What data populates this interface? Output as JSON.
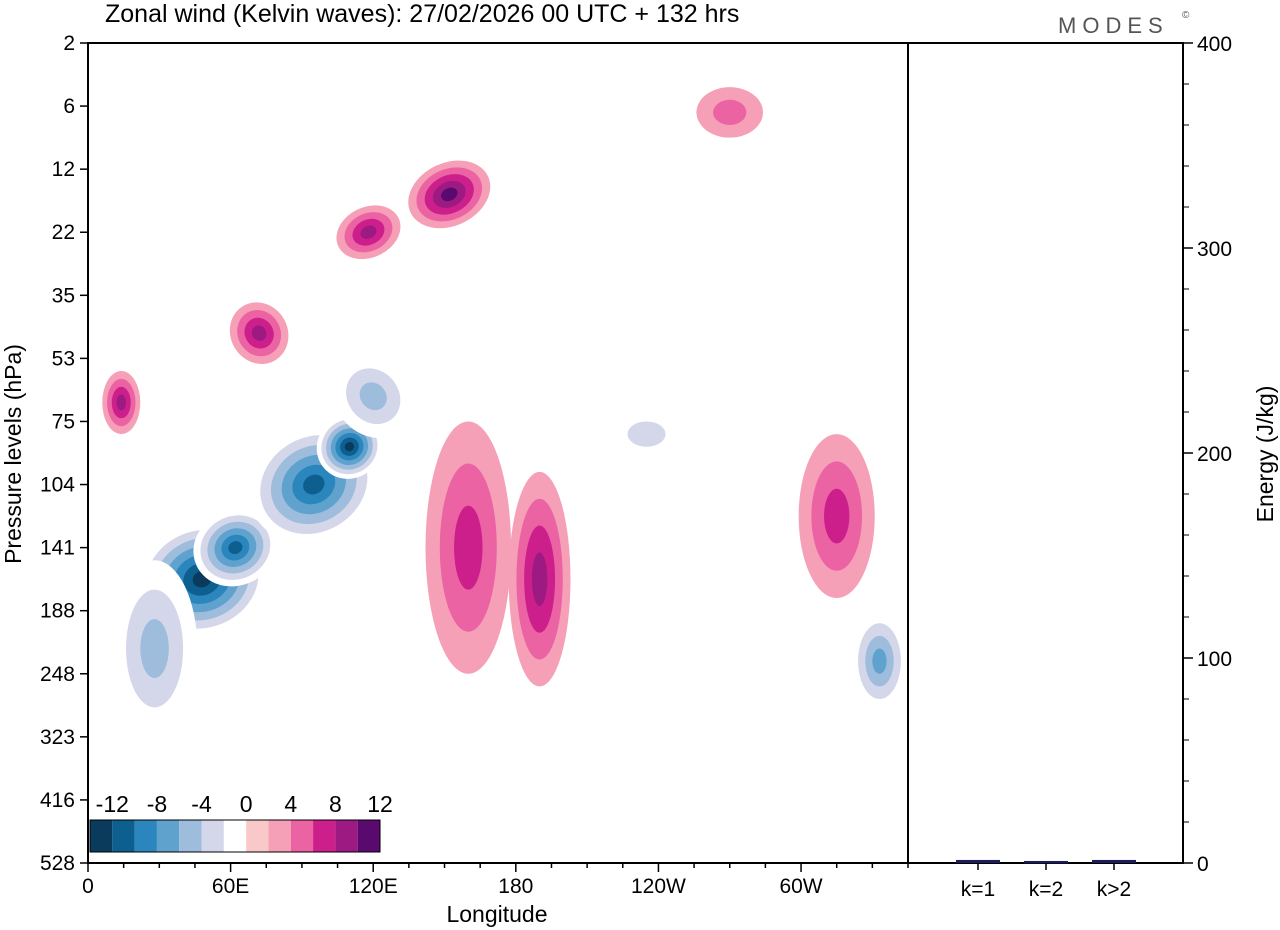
{
  "title": "Zonal wind (Kelvin waves):  27/02/2026  00 UTC  + 132 hrs",
  "brand": "MODES",
  "brand_mark": "©",
  "chart_data": [
    {
      "type": "heatmap",
      "title": "Zonal wind (Kelvin waves):  27/02/2026  00 UTC  + 132 hrs",
      "xlabel": "Longitude",
      "ylabel": "Pressure levels (hPa)",
      "x_ticks": [
        "0",
        "60E",
        "120E",
        "180",
        "120W",
        "60W"
      ],
      "x_tick_values": [
        0,
        60,
        120,
        180,
        240,
        300
      ],
      "xlim": [
        0,
        345
      ],
      "y_ticks": [
        "2",
        "6",
        "12",
        "22",
        "35",
        "53",
        "75",
        "104",
        "141",
        "188",
        "248",
        "323",
        "416",
        "528"
      ],
      "colorbar": {
        "ticks": [
          "-12",
          "-8",
          "-4",
          "0",
          "4",
          "8",
          "12"
        ],
        "levels": [
          -14,
          -12,
          -10,
          -8,
          -6,
          -4,
          -2,
          2,
          4,
          6,
          8,
          10,
          12,
          14
        ],
        "colors": [
          "#0a3a5c",
          "#0c5f8e",
          "#2a86bd",
          "#5fa2cd",
          "#9ebcdc",
          "#d4d6e9",
          "#ffffff",
          "#f9c9c9",
          "#f6a0b8",
          "#ec63a4",
          "#cc1f8c",
          "#9c1a82",
          "#5a0a6e"
        ]
      },
      "blobs": [
        {
          "lon": 48,
          "lev": 8.5,
          "rx": 28,
          "ry": 0.9,
          "rot": 18,
          "value": -14
        },
        {
          "lon": 62,
          "lev": 8.0,
          "rx": 18,
          "ry": 0.6,
          "rot": 25,
          "value": -13
        },
        {
          "lon": 95,
          "lev": 7.0,
          "rx": 28,
          "ry": 0.9,
          "rot": 30,
          "value": -13
        },
        {
          "lon": 110,
          "lev": 6.4,
          "rx": 14,
          "ry": 0.5,
          "rot": 35,
          "value": -14
        },
        {
          "lon": 28,
          "lev": 9.6,
          "rx": 18,
          "ry": 1.4,
          "rot": 0,
          "value": -6
        },
        {
          "lon": 120,
          "lev": 5.6,
          "rx": 16,
          "ry": 0.7,
          "rot": 40,
          "value": -7
        },
        {
          "lon": 152,
          "lev": 2.4,
          "rx": 18,
          "ry": 0.5,
          "rot": 25,
          "value": 11
        },
        {
          "lon": 118,
          "lev": 3.0,
          "rx": 14,
          "ry": 0.4,
          "rot": 25,
          "value": 8
        },
        {
          "lon": 72,
          "lev": 4.6,
          "rx": 12,
          "ry": 0.5,
          "rot": 30,
          "value": 8
        },
        {
          "lon": 14,
          "lev": 5.7,
          "rx": 8,
          "ry": 0.5,
          "rot": 0,
          "value": 8
        },
        {
          "lon": 160,
          "lev": 8.0,
          "rx": 18,
          "ry": 2.0,
          "rot": 0,
          "value": 6
        },
        {
          "lon": 190,
          "lev": 8.5,
          "rx": 13,
          "ry": 1.7,
          "rot": 0,
          "value": 9
        },
        {
          "lon": 270,
          "lev": 1.1,
          "rx": 14,
          "ry": 0.4,
          "rot": 0,
          "value": 4
        },
        {
          "lon": 315,
          "lev": 7.5,
          "rx": 16,
          "ry": 1.3,
          "rot": 0,
          "value": 7
        },
        {
          "lon": 333,
          "lev": 9.8,
          "rx": 12,
          "ry": 0.8,
          "rot": 0,
          "value": -8
        },
        {
          "lon": 235,
          "lev": 6.2,
          "rx": 16,
          "ry": 0.4,
          "rot": 0,
          "value": -4
        }
      ],
      "ylabel_right": "Energy (J/kg)"
    },
    {
      "type": "bar",
      "categories": [
        "k=1",
        "k=2",
        "k>2"
      ],
      "values": [
        1,
        0.5,
        1
      ],
      "ylabel": "Energy (J/kg)",
      "ylim": [
        0,
        400
      ],
      "y_ticks": [
        0,
        100,
        200,
        300,
        400
      ],
      "color": "#1c1c5a"
    }
  ]
}
